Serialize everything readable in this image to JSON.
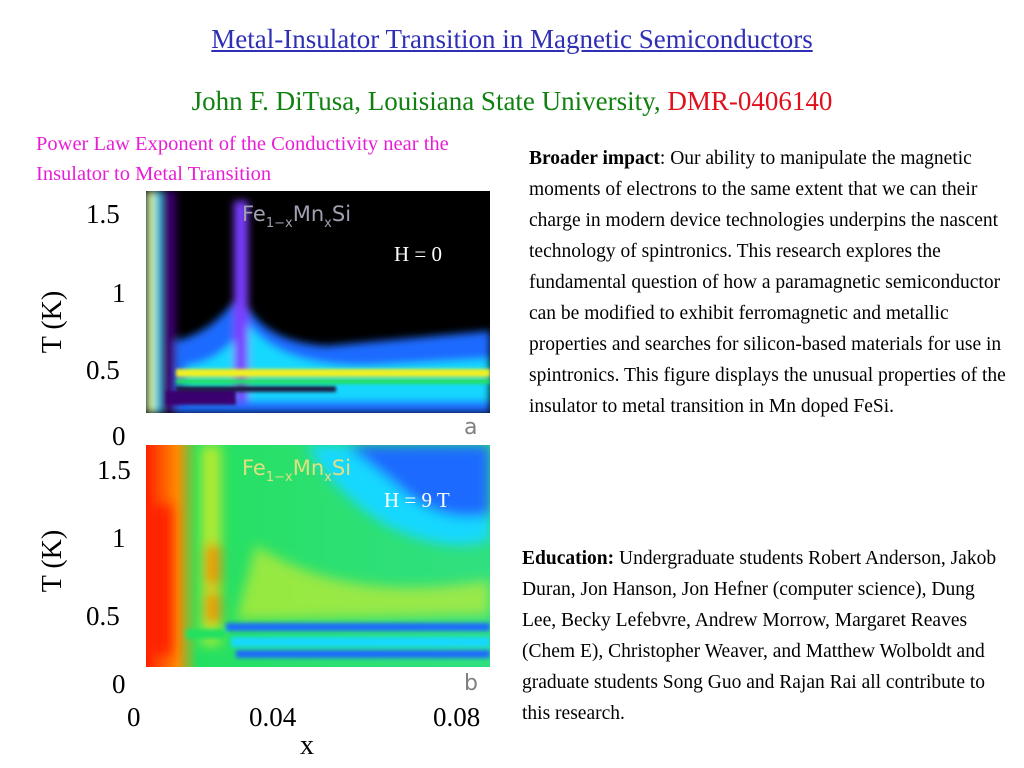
{
  "title": "Metal-Insulator Transition in Magnetic Semiconductors",
  "byline": {
    "text": "John F. DiTusa, Louisiana State University, ",
    "grant": "DMR-0406140"
  },
  "figure_caption": "Power Law Exponent of the Conductivity near the Insulator to Metal Transition",
  "broader_impact": {
    "heading": "Broader impact",
    "text": ": Our ability to manipulate the magnetic moments of electrons to the same extent that we can their charge in modern device technologies underpins the nascent technology of spintronics. This research explores the fundamental question of how a paramagnetic semiconductor can be modified to exhibit ferromagnetic and metallic properties and searches for silicon-based materials for use in spintronics. This figure displays the unusual properties of the insulator to metal transition in Mn doped FeSi."
  },
  "education": {
    "heading": "Education:",
    "text": " Undergraduate students Robert Anderson, Jakob Duran, Jon Hanson, Jon Hefner (computer science), Dung Lee, Becky Lefebvre, Andrew Morrow, Margaret Reaves (Chem E), Christopher Weaver, and  Matthew Wolboldt  and graduate students Song Guo and Rajan Rai all contribute to this research."
  },
  "chart_data": [
    {
      "type": "heatmap",
      "panel_label": "a",
      "compound": {
        "base": "Fe",
        "sub1": "1−x",
        "mid": "Mn",
        "sub2": "x",
        "end": "Si"
      },
      "field_label": "H = 0",
      "ylabel": "T (K)",
      "xlabel": "",
      "yticks": [
        "1.5",
        "1",
        "0.5",
        "0"
      ],
      "ylim": [
        0,
        1.6
      ],
      "xlim": [
        0,
        0.09
      ],
      "colormap": [
        "#000000",
        "#3a0070",
        "#7a3cff",
        "#1e6bff",
        "#18d8ff",
        "#24e060",
        "#f0f020",
        "#ff8a00",
        "#ff2000"
      ]
    },
    {
      "type": "heatmap",
      "panel_label": "b",
      "compound": {
        "base": "Fe",
        "sub1": "1−x",
        "mid": "Mn",
        "sub2": "x",
        "end": "Si"
      },
      "field_label": "H = 9 T",
      "ylabel": "T (K)",
      "xlabel": "x",
      "yticks": [
        "1.5",
        "1",
        "0.5",
        "0"
      ],
      "xticks": [
        "0",
        "0.04",
        "0.08"
      ],
      "ylim": [
        0,
        1.6
      ],
      "xlim": [
        0,
        0.09
      ],
      "colormap": [
        "#000000",
        "#3a0070",
        "#7a3cff",
        "#1e6bff",
        "#18d8ff",
        "#24e060",
        "#f0f020",
        "#ff8a00",
        "#ff2000"
      ]
    }
  ]
}
